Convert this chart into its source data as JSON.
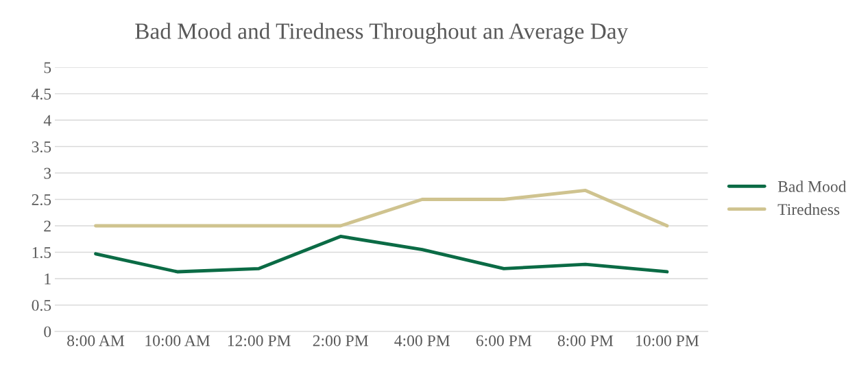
{
  "chart_data": {
    "type": "line",
    "title": "Bad Mood and Tiredness Throughout an Average Day",
    "categories": [
      "8:00 AM",
      "10:00 AM",
      "12:00 PM",
      "2:00 PM",
      "4:00 PM",
      "6:00 PM",
      "8:00 PM",
      "10:00 PM"
    ],
    "series": [
      {
        "name": "Bad Mood",
        "color": "#0b6b45",
        "values": [
          1.47,
          1.13,
          1.19,
          1.8,
          1.55,
          1.19,
          1.27,
          1.13
        ]
      },
      {
        "name": "Tiredness",
        "color": "#cfc38f",
        "values": [
          2,
          2,
          2,
          2,
          2.5,
          2.5,
          2.67,
          2
        ]
      }
    ],
    "ylim": [
      0,
      5
    ],
    "yticks": [
      0,
      0.5,
      1,
      1.5,
      2,
      2.5,
      3,
      3.5,
      4,
      4.5,
      5
    ],
    "grid": "y",
    "legend": "right",
    "marker": "none",
    "line_style": "solid"
  }
}
